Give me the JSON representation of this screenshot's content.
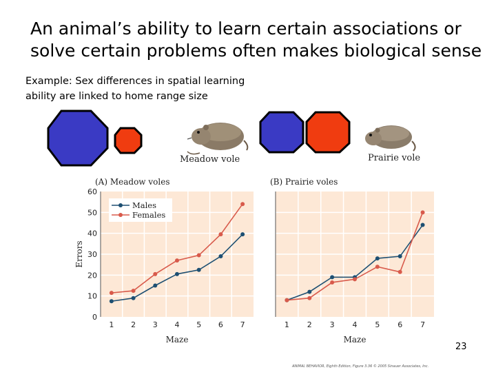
{
  "slide": {
    "title": "An animal’s ability to learn certain associations or solve certain problems often makes biological sense",
    "example_text": "Example:  Sex differences in spatial learning ability are linked to home range size",
    "page_number": "23",
    "credit": "ANIMAL BEHAVIOR, Eighth Edition, Figure 3.36 © 2005 Sinauer Associates, Inc."
  },
  "colors": {
    "male_blue": "#1d4f72",
    "female_red": "#d85a4b",
    "octagon_blue": "#3a3ac4",
    "octagon_red": "#f03c10",
    "panel_bg": "#fde8d6",
    "grid": "#ffffff"
  },
  "illustrations": {
    "meadow_label": "Meadow vole",
    "prairie_label": "Prairie vole"
  },
  "chart_data": [
    {
      "type": "line",
      "title": "(A)  Meadow voles",
      "xlabel": "Maze",
      "ylabel": "Errors",
      "categories": [
        "1",
        "2",
        "3",
        "4",
        "5",
        "6",
        "7"
      ],
      "ylim": [
        0,
        60
      ],
      "yticks": [
        "0",
        "10",
        "20",
        "30",
        "40",
        "50",
        "60"
      ],
      "legend": "top-left",
      "series": [
        {
          "name": "Males",
          "values": [
            7.5,
            9,
            15,
            20.5,
            22.5,
            29,
            39.5
          ]
        },
        {
          "name": "Females",
          "values": [
            11.5,
            12.5,
            20.5,
            27,
            29.5,
            39.5,
            54
          ]
        }
      ]
    },
    {
      "type": "line",
      "title": "(B)  Prairie voles",
      "xlabel": "Maze",
      "ylabel": "",
      "categories": [
        "1",
        "2",
        "3",
        "4",
        "5",
        "6",
        "7"
      ],
      "ylim": [
        0,
        60
      ],
      "legend": "none",
      "series": [
        {
          "name": "Males",
          "values": [
            8,
            12,
            19,
            19,
            28,
            29,
            44
          ]
        },
        {
          "name": "Females",
          "values": [
            8,
            9,
            16.5,
            18,
            24,
            21.5,
            50
          ]
        }
      ]
    }
  ]
}
